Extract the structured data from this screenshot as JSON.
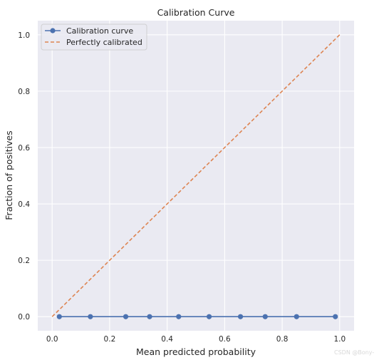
{
  "chart_data": {
    "type": "line",
    "title": "Calibration Curve",
    "xlabel": "Mean predicted probability",
    "ylabel": "Fraction of positives",
    "xlim": [
      -0.05,
      1.05
    ],
    "ylim": [
      -0.05,
      1.05
    ],
    "xticks": [
      0.0,
      0.2,
      0.4,
      0.6,
      0.8,
      1.0
    ],
    "yticks": [
      0.0,
      0.2,
      0.4,
      0.6,
      0.8,
      1.0
    ],
    "xtick_labels": [
      "0.0",
      "0.2",
      "0.4",
      "0.6",
      "0.8",
      "1.0"
    ],
    "ytick_labels": [
      "0.0",
      "0.2",
      "0.4",
      "0.6",
      "0.8",
      "1.0"
    ],
    "grid": true,
    "legend_position": "top-left",
    "series": [
      {
        "name": "Calibration curve",
        "style": "solid-with-circle-markers",
        "color": "#4c72b0",
        "x": [
          0.025,
          0.133,
          0.256,
          0.339,
          0.44,
          0.546,
          0.655,
          0.741,
          0.85,
          0.985
        ],
        "y": [
          0,
          0,
          0,
          0,
          0,
          0,
          0,
          0,
          0,
          0
        ]
      },
      {
        "name": "Perfectly calibrated",
        "style": "dashed",
        "color": "#dd8452",
        "x": [
          0,
          1
        ],
        "y": [
          0,
          1
        ]
      }
    ]
  },
  "watermark": "CSDN @Bony-"
}
